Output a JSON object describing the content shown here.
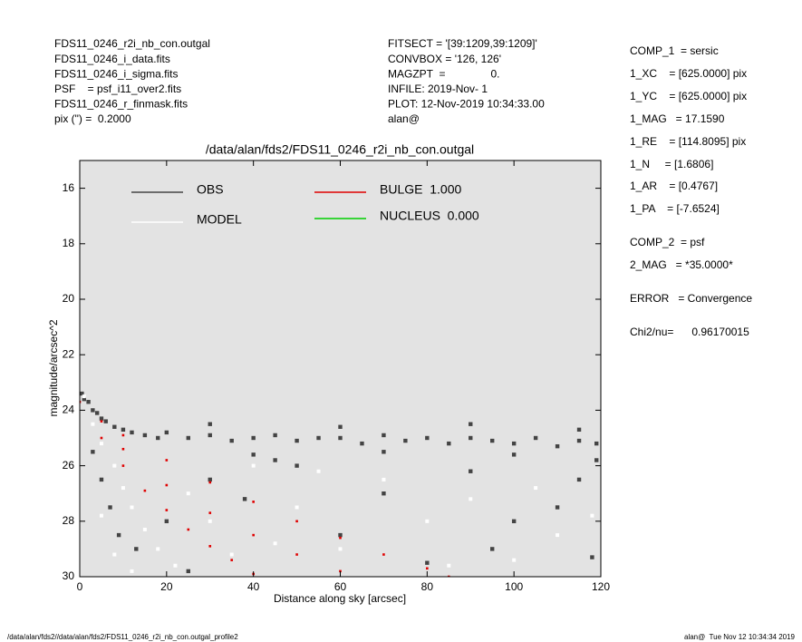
{
  "chart_data": {
    "type": "scatter",
    "title": "/data/alan/fds2/FDS11_0246_r2i_nb_con.outgal",
    "x_label": "Distance along sky [arcsec]",
    "y_label": "magnitude/arcsec^2",
    "xlim": [
      0,
      120
    ],
    "ylim": [
      15,
      30
    ],
    "xticks": [
      0,
      20,
      40,
      60,
      80,
      100,
      120
    ],
    "yticks": [
      16,
      18,
      20,
      22,
      24,
      26,
      28,
      30
    ],
    "y_inverted": true,
    "background": "#e3e3e3",
    "series": [
      {
        "name": "OBS",
        "color": "#444444",
        "x": [
          0.5,
          1,
          2,
          3,
          4,
          5,
          6,
          8,
          10,
          12,
          15,
          18,
          20,
          25,
          30,
          35,
          40,
          45,
          50,
          55,
          60,
          65,
          70,
          75,
          80,
          85,
          90,
          95,
          100,
          105,
          110,
          115,
          119,
          30,
          60,
          90,
          115,
          40,
          70,
          100,
          119,
          3,
          5,
          7,
          9,
          13,
          20,
          30,
          38,
          50,
          60,
          70,
          80,
          90,
          100,
          110,
          118,
          25,
          45,
          95,
          115
        ],
        "values": [
          23.4,
          23.6,
          23.7,
          24.0,
          24.1,
          24.3,
          24.4,
          24.6,
          24.7,
          24.8,
          24.9,
          25.0,
          24.8,
          25.0,
          24.9,
          25.1,
          25.0,
          24.9,
          25.1,
          25.0,
          25.0,
          25.2,
          24.9,
          25.1,
          25.0,
          25.2,
          25.0,
          25.1,
          25.2,
          25.0,
          25.3,
          25.1,
          25.2,
          24.5,
          24.6,
          24.5,
          24.7,
          25.6,
          25.5,
          25.6,
          25.8,
          25.5,
          26.5,
          27.5,
          28.5,
          29.0,
          28.0,
          26.5,
          27.2,
          26.0,
          28.5,
          27.0,
          29.5,
          26.2,
          28.0,
          27.5,
          29.3,
          29.8,
          25.8,
          29.0,
          26.5
        ]
      },
      {
        "name": "MODEL",
        "color": "#ffffff",
        "x": [
          1,
          3,
          5,
          8,
          10,
          12,
          15,
          18,
          22,
          5,
          8,
          12,
          25,
          30,
          35,
          40,
          50,
          60,
          70,
          80,
          90,
          100,
          110,
          118,
          45,
          55,
          85,
          105
        ],
        "values": [
          23.5,
          24.5,
          25.2,
          26.0,
          26.8,
          27.5,
          28.3,
          29.0,
          29.6,
          27.8,
          29.2,
          29.8,
          27.0,
          28.0,
          29.2,
          26.0,
          27.5,
          29.0,
          26.5,
          28.0,
          27.2,
          29.4,
          28.5,
          27.8,
          28.8,
          26.2,
          29.6,
          26.8
        ]
      },
      {
        "name": "BULGE  1.000",
        "color": "#e00000",
        "x": [
          0,
          5,
          10,
          15,
          20,
          25,
          30,
          35,
          40,
          5,
          10,
          20,
          30,
          40,
          50,
          60,
          70,
          80,
          85,
          10,
          20,
          30,
          40,
          50,
          60
        ],
        "values": [
          23.7,
          25.0,
          26.0,
          26.9,
          27.6,
          28.3,
          28.9,
          29.4,
          29.9,
          24.4,
          24.9,
          25.8,
          26.6,
          27.3,
          28.0,
          28.6,
          29.2,
          29.7,
          30.0,
          25.4,
          26.7,
          27.7,
          28.5,
          29.2,
          29.8
        ]
      },
      {
        "name": "NUCLEUS  0.000",
        "color": "#00d000",
        "x": [],
        "values": []
      }
    ],
    "header_left": [
      "FDS11_0246_r2i_nb_con.outgal",
      "FDS11_0246_i_data.fits",
      "FDS11_0246_i_sigma.fits",
      "PSF    = psf_i11_over2.fits",
      "FDS11_0246_r_finmask.fits",
      "pix (\") =  0.2000"
    ],
    "header_middle": [
      "FITSECT = '[39:1209,39:1209]'",
      "CONVBOX = '126, 126'",
      "MAGZPT  =               0.",
      "INFILE: 2019-Nov- 1",
      "PLOT: 12-Nov-2019 10:34:33.00",
      "alan@"
    ],
    "header_right": [
      "COMP_1  = sersic",
      "1_XC    = [625.0000] pix",
      "1_YC    = [625.0000] pix",
      "1_MAG   = 17.1590",
      "1_RE    = [114.8095] pix",
      "1_N     = [1.6806]",
      "1_AR    = [0.4767]",
      "1_PA    = [-7.6524]",
      "COMP_2  = psf",
      "2_MAG   = *35.0000*",
      "ERROR   = Convergence",
      "Chi2/nu=      0.96170015"
    ],
    "footer_left": "/data/alan/fds2//data/alan/fds2/FDS11_0246_r2i_nb_con.outgal_profile2",
    "footer_right": "alan@  Tue Nov 12 10:34:34 2019"
  }
}
